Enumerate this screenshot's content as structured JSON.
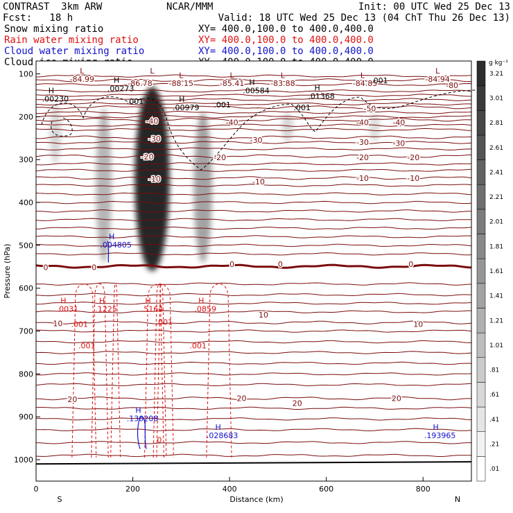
{
  "header": {
    "model": "CONTRAST  3km ARW",
    "forecast": "Fcst:   18 h",
    "center": "NCAR/MMM",
    "init": "Init: 00 UTC Wed 25 Dec 13",
    "valid": "Valid: 18 UTC Wed 25 Dec 13 (04 ChT Thu 26 Dec 13)"
  },
  "fields": [
    {
      "label": "Snow mixing ratio",
      "xy": "XY= 400.0,100.0 to 400.0,400.0",
      "color": "#000000"
    },
    {
      "label": "Rain water mixing ratio",
      "xy": "XY= 400.0,100.0 to 400.0,400.0",
      "color": "#dd1111"
    },
    {
      "label": "Cloud water mixing ratio",
      "xy": "XY= 400.0,100.0 to 400.0,400.0",
      "color": "#1111cc"
    },
    {
      "label": "Cloud ice mixing ratio",
      "xy": "XY= 400.0,100.0 to 400.0,400.0",
      "color": "#000000"
    }
  ],
  "colors": {
    "temperature": "#7a0b0b",
    "rain": "#dd1111",
    "cloud_water": "#1111cc",
    "ice": "#000000"
  },
  "chart_data": {
    "type": "heatmap",
    "xlabel": "Distance (km)",
    "ylabel": "Pressure (hPa)",
    "xlim": [
      0,
      900
    ],
    "ylim": [
      1050,
      70
    ],
    "x_ticks": [
      "0",
      "200",
      "400",
      "600",
      "800"
    ],
    "x_tick_values": [
      0,
      200,
      400,
      600,
      800
    ],
    "y_ticks": [
      "100",
      "200",
      "300",
      "400",
      "500",
      "600",
      "700",
      "800",
      "900",
      "1000"
    ],
    "y_tick_values": [
      100,
      200,
      300,
      400,
      500,
      600,
      700,
      800,
      900,
      1000
    ],
    "direction_labels": {
      "left": "S",
      "right": "N"
    },
    "colorbar": {
      "unit_label": "g kg⁻¹",
      "levels": [
        ".01",
        ".21",
        ".41",
        ".61",
        ".81",
        "1.01",
        "1.21",
        "1.41",
        "1.61",
        "1.81",
        "2.01",
        "2.21",
        "2.41",
        "2.61",
        "2.81",
        "3.01",
        "3.21"
      ]
    },
    "snow_columns": [
      {
        "x": 40,
        "p_top": 170,
        "p_bottom": 310,
        "max": 0.4
      },
      {
        "x": 140,
        "p_top": 180,
        "p_bottom": 540,
        "max": 0.9
      },
      {
        "x": 240,
        "p_top": 130,
        "p_bottom": 560,
        "max": 3.2
      },
      {
        "x": 345,
        "p_top": 190,
        "p_bottom": 540,
        "max": 1.2
      },
      {
        "x": 520,
        "p_top": 190,
        "p_bottom": 260,
        "max": 0.4
      },
      {
        "x": 700,
        "p_top": 190,
        "p_bottom": 260,
        "max": 0.3
      }
    ],
    "temperature_contours": [
      {
        "label": "-80",
        "p": 115
      },
      {
        "label": "-50",
        "p": 178
      },
      {
        "label": "-40",
        "p": 207
      },
      {
        "label": "-30",
        "p": 248
      },
      {
        "label": "-20",
        "p": 292
      },
      {
        "label": "-10",
        "p": 343
      },
      {
        "label": "0",
        "p": 549
      },
      {
        "label": "10",
        "p": 680
      },
      {
        "label": "20",
        "p": 857
      }
    ],
    "temperature_labels": [
      {
        "text": "-84.99",
        "x": 95,
        "p": 112
      },
      {
        "text": "-86.78",
        "x": 215,
        "p": 122
      },
      {
        "text": "-88.15",
        "x": 300,
        "p": 122
      },
      {
        "text": "-85.41",
        "x": 405,
        "p": 122
      },
      {
        "text": "-83.88",
        "x": 510,
        "p": 122
      },
      {
        "text": "-84.85",
        "x": 680,
        "p": 122
      },
      {
        "text": "-84.94",
        "x": 830,
        "p": 112
      },
      {
        "text": "-80",
        "x": 860,
        "p": 127
      },
      {
        "text": "-50",
        "x": 690,
        "p": 181
      },
      {
        "text": "-40",
        "x": 240,
        "p": 210
      },
      {
        "text": "-40",
        "x": 405,
        "p": 213
      },
      {
        "text": "-40",
        "x": 675,
        "p": 213
      },
      {
        "text": "-40",
        "x": 750,
        "p": 213
      },
      {
        "text": "-30",
        "x": 245,
        "p": 251
      },
      {
        "text": "-30",
        "x": 455,
        "p": 254
      },
      {
        "text": "-30",
        "x": 675,
        "p": 259
      },
      {
        "text": "-30",
        "x": 750,
        "p": 262
      },
      {
        "text": "-20",
        "x": 230,
        "p": 293
      },
      {
        "text": "-20",
        "x": 380,
        "p": 295
      },
      {
        "text": "-20",
        "x": 675,
        "p": 295
      },
      {
        "text": "-20",
        "x": 780,
        "p": 295
      },
      {
        "text": "-10",
        "x": 245,
        "p": 345
      },
      {
        "text": "-10",
        "x": 460,
        "p": 351
      },
      {
        "text": "-10",
        "x": 675,
        "p": 343
      },
      {
        "text": "-10",
        "x": 780,
        "p": 343
      },
      {
        "text": "0",
        "x": 20,
        "p": 551
      },
      {
        "text": "0",
        "x": 120,
        "p": 551
      },
      {
        "text": "0",
        "x": 405,
        "p": 544
      },
      {
        "text": "0",
        "x": 505,
        "p": 544
      },
      {
        "text": "0",
        "x": 775,
        "p": 544
      },
      {
        "text": "10",
        "x": 45,
        "p": 682
      },
      {
        "text": "10",
        "x": 470,
        "p": 662
      },
      {
        "text": "10",
        "x": 790,
        "p": 684
      },
      {
        "text": "20",
        "x": 75,
        "p": 859
      },
      {
        "text": "20",
        "x": 425,
        "p": 857
      },
      {
        "text": "20",
        "x": 540,
        "p": 868
      },
      {
        "text": "20",
        "x": 745,
        "p": 857
      }
    ],
    "low_markers": [
      {
        "x": 95,
        "p": 99
      },
      {
        "x": 240,
        "p": 99
      },
      {
        "x": 300,
        "p": 110
      },
      {
        "x": 405,
        "p": 110
      },
      {
        "x": 510,
        "p": 110
      },
      {
        "x": 675,
        "p": 110
      },
      {
        "x": 830,
        "p": 99
      }
    ],
    "ice_maxima": [
      {
        "text": ".00230",
        "x": 40,
        "p": 165
      },
      {
        "text": ".00273",
        "x": 175,
        "p": 140
      },
      {
        "text": ".00979",
        "x": 310,
        "p": 185
      },
      {
        "text": ".00584",
        "x": 455,
        "p": 145
      },
      {
        "text": ".01368",
        "x": 590,
        "p": 158
      }
    ],
    "ice_contour_labels": [
      {
        "text": ".001",
        "x": 205,
        "p": 170
      },
      {
        "text": ".001",
        "x": 385,
        "p": 178
      },
      {
        "text": ".001",
        "x": 550,
        "p": 185
      },
      {
        "text": ".001",
        "x": 710,
        "p": 122
      }
    ],
    "cloud_water_maxima": [
      {
        "text": ".004805",
        "x": 165,
        "p": 505
      },
      {
        "text": ".130208",
        "x": 220,
        "p": 910
      },
      {
        "text": ".028683",
        "x": 385,
        "p": 950
      },
      {
        "text": ".193965",
        "x": 835,
        "p": 950
      }
    ],
    "rain_maxima": [
      {
        "text": ".0031",
        "x": 65,
        "p": 655
      },
      {
        "text": ".1225",
        "x": 145,
        "p": 655
      },
      {
        "text": ".5164",
        "x": 240,
        "p": 655
      },
      {
        "text": ".0859",
        "x": 350,
        "p": 655
      }
    ],
    "rain_contour_labels": [
      {
        "text": ".001",
        "x": 90,
        "p": 690
      },
      {
        "text": ".001",
        "x": 105,
        "p": 740
      },
      {
        "text": ".001",
        "x": 265,
        "p": 685
      },
      {
        "text": ".001",
        "x": 335,
        "p": 740
      },
      {
        "text": "0",
        "x": 255,
        "p": 960
      }
    ]
  }
}
